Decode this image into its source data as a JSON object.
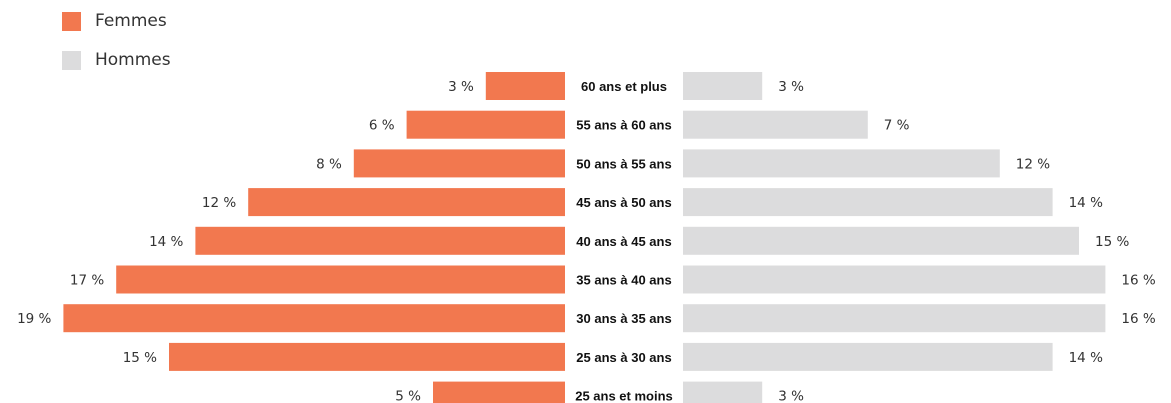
{
  "chart_data": {
    "type": "bar",
    "categories": [
      "60 ans et plus",
      "55 ans à 60 ans",
      "50 ans à 55 ans",
      "45 ans à 50 ans",
      "40 ans à 45 ans",
      "35 ans à 40 ans",
      "30 ans à 35 ans",
      "25 ans à 30 ans",
      "25 ans et moins"
    ],
    "series": [
      {
        "name": "Femmes",
        "values": [
          3,
          6,
          8,
          12,
          14,
          17,
          19,
          15,
          5
        ],
        "labels": [
          "3 %",
          "6 %",
          "8 %",
          "12 %",
          "14 %",
          "17 %",
          "19 %",
          "15 %",
          "5 %"
        ],
        "color": "#f2784f"
      },
      {
        "name": "Hommes",
        "values": [
          3,
          7,
          12,
          14,
          15,
          16,
          16,
          14,
          3
        ],
        "labels": [
          "3 %",
          "7 %",
          "12 %",
          "14 %",
          "15 %",
          "16 %",
          "16 %",
          "14 %",
          "3 %"
        ],
        "color": "#dcdcdd"
      }
    ],
    "legend_position": "top-left",
    "grid": false
  },
  "legend": {
    "items": [
      {
        "label": "Femmes",
        "color": "#f2784f"
      },
      {
        "label": "Hommes",
        "color": "#dcdcdd"
      }
    ]
  }
}
